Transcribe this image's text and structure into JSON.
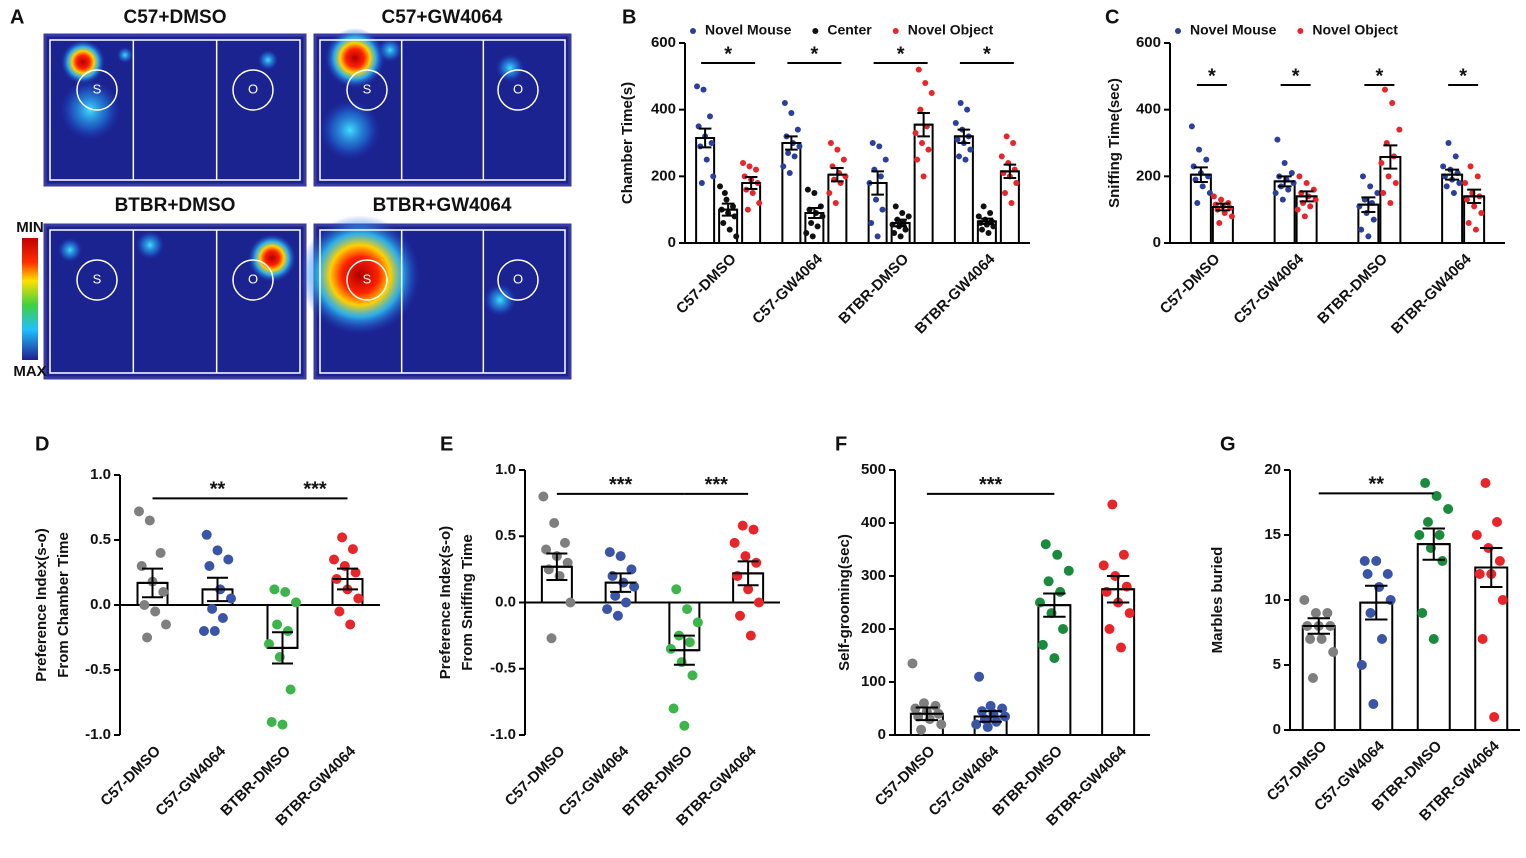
{
  "heatmap_panel": {
    "label": "A",
    "titles": [
      "C57+DMSO",
      "C57+GW4064",
      "BTBR+DMSO",
      "BTBR+GW4064"
    ],
    "colorbar": {
      "min": "MIN",
      "max": "MAX"
    },
    "zone_labels": [
      "S",
      "O"
    ]
  },
  "chart_data": [
    {
      "type": "bar",
      "label": "B",
      "ylabel": "Chamber Time(s)",
      "categories": [
        "C57-DMSO",
        "C57-GW4064",
        "BTBR-DMSO",
        "BTBR-GW4064"
      ],
      "series": [
        {
          "name": "Novel Mouse",
          "color": "#2b3f9c",
          "values": [
            315,
            300,
            180,
            320
          ],
          "errors": [
            28,
            20,
            35,
            20
          ],
          "points": [
            [
              470,
              460,
              380,
              350,
              320,
              300,
              290,
              250,
              200,
              180
            ],
            [
              420,
              390,
              340,
              320,
              300,
              290,
              270,
              260,
              230,
              210
            ],
            [
              300,
              290,
              250,
              220,
              200,
              180,
              130,
              100,
              60,
              20
            ],
            [
              420,
              400,
              360,
              340,
              320,
              310,
              300,
              280,
              260,
              250
            ]
          ]
        },
        {
          "name": "Center",
          "color": "#111111",
          "values": [
            100,
            90,
            60,
            65
          ],
          "errors": [
            18,
            15,
            10,
            8
          ],
          "points": [
            [
              170,
              130,
              110,
              100,
              90,
              80,
              60,
              40,
              20,
              150
            ],
            [
              160,
              150,
              110,
              100,
              90,
              80,
              60,
              50,
              30,
              20
            ],
            [
              110,
              90,
              80,
              70,
              60,
              55,
              50,
              40,
              30,
              20
            ],
            [
              110,
              90,
              80,
              70,
              65,
              60,
              55,
              50,
              40,
              30
            ]
          ]
        },
        {
          "name": "Novel Object",
          "color": "#e8262a",
          "values": [
            180,
            205,
            355,
            215
          ],
          "errors": [
            18,
            20,
            35,
            20
          ],
          "points": [
            [
              240,
              230,
              220,
              200,
              190,
              180,
              160,
              150,
              120,
              100
            ],
            [
              300,
              280,
              250,
              230,
              210,
              200,
              190,
              180,
              150,
              120
            ],
            [
              520,
              480,
              450,
              400,
              350,
              330,
              300,
              280,
              250,
              200
            ],
            [
              320,
              300,
              260,
              240,
              220,
              210,
              200,
              180,
              150,
              120
            ]
          ]
        }
      ],
      "ylim": [
        0,
        600
      ],
      "yticks": [
        0,
        200,
        400,
        600
      ],
      "legend": "top",
      "annotations": [
        {
          "text": "*",
          "category": 0
        },
        {
          "text": "*",
          "category": 1
        },
        {
          "text": "*",
          "category": 2
        },
        {
          "text": "*",
          "category": 3
        }
      ]
    },
    {
      "type": "bar",
      "label": "C",
      "ylabel": "Sniffing Time(sec)",
      "categories": [
        "C57-DMSO",
        "C57-GW4064",
        "BTBR-DMSO",
        "BTBR-GW4064"
      ],
      "series": [
        {
          "name": "Novel Mouse",
          "color": "#2b3f9c",
          "values": [
            205,
            185,
            115,
            205
          ],
          "errors": [
            22,
            15,
            22,
            15
          ],
          "points": [
            [
              350,
              280,
              250,
              230,
              210,
              200,
              190,
              170,
              150,
              120
            ],
            [
              310,
              240,
              210,
              200,
              190,
              180,
              170,
              160,
              150,
              130
            ],
            [
              200,
              170,
              150,
              130,
              120,
              110,
              90,
              70,
              40,
              20
            ],
            [
              300,
              260,
              230,
              220,
              210,
              200,
              190,
              180,
              170,
              150
            ]
          ]
        },
        {
          "name": "Novel Object",
          "color": "#e8262a",
          "values": [
            108,
            140,
            258,
            140
          ],
          "errors": [
            10,
            15,
            35,
            20
          ],
          "points": [
            [
              140,
              130,
              120,
              115,
              110,
              105,
              100,
              90,
              80,
              60
            ],
            [
              200,
              180,
              160,
              150,
              140,
              130,
              120,
              110,
              100,
              80
            ],
            [
              460,
              420,
              340,
              300,
              260,
              240,
              200,
              180,
              150,
              120
            ],
            [
              230,
              200,
              180,
              150,
              140,
              130,
              110,
              90,
              60,
              40
            ]
          ]
        }
      ],
      "ylim": [
        0,
        600
      ],
      "yticks": [
        0,
        200,
        400,
        600
      ],
      "legend": "top",
      "annotations": [
        {
          "text": "*",
          "category": 0
        },
        {
          "text": "*",
          "category": 1
        },
        {
          "text": "*",
          "category": 2
        },
        {
          "text": "*",
          "category": 3
        }
      ]
    },
    {
      "type": "bar",
      "label": "D",
      "ylabel": [
        "Preference Index(s-o)",
        "From Chamber Time"
      ],
      "categories": [
        "C57-DMSO",
        "C57-GW4064",
        "BTBR-DMSO",
        "BTBR-GW4064"
      ],
      "values": [
        0.17,
        0.12,
        -0.33,
        0.2
      ],
      "errors": [
        0.11,
        0.09,
        0.12,
        0.08
      ],
      "colors": [
        "#7f7f7f",
        "#3b55a6",
        "#3cb54a",
        "#e8262a"
      ],
      "points": [
        [
          0.72,
          0.65,
          0.4,
          0.3,
          0.18,
          0.1,
          0,
          -0.05,
          -0.15,
          -0.25
        ],
        [
          0.54,
          0.42,
          0.35,
          0.3,
          0.12,
          0.05,
          -0.03,
          -0.1,
          -0.2,
          -0.2
        ],
        [
          0.12,
          0.1,
          0.02,
          -0.15,
          -0.2,
          -0.3,
          -0.4,
          -0.65,
          -0.9,
          -0.92
        ],
        [
          0.52,
          0.43,
          0.35,
          0.3,
          0.25,
          0.2,
          0.12,
          0.05,
          -0.05,
          -0.15
        ]
      ],
      "ylim": [
        -1,
        1
      ],
      "yticks": [
        {
          "value": -1,
          "label": "-1.0"
        },
        -0.5,
        {
          "value": 0,
          "label": "0.0"
        },
        0.5,
        {
          "value": 1,
          "label": "1.0"
        }
      ],
      "annotations": [
        {
          "text": "**",
          "categories": [
            0,
            2
          ]
        },
        {
          "text": "***",
          "categories": [
            2,
            3
          ]
        }
      ]
    },
    {
      "type": "bar",
      "label": "E",
      "ylabel": [
        "Preference Index(s-o)",
        "From Sniffing Time"
      ],
      "categories": [
        "C57-DMSO",
        "C57-GW4064",
        "BTBR-DMSO",
        "BTBR-GW4064"
      ],
      "values": [
        0.27,
        0.15,
        -0.36,
        0.22
      ],
      "errors": [
        0.1,
        0.07,
        0.11,
        0.09
      ],
      "colors": [
        "#7f7f7f",
        "#3b55a6",
        "#3cb54a",
        "#e8262a"
      ],
      "points": [
        [
          0.8,
          0.6,
          0.45,
          0.4,
          0.35,
          0.3,
          0.25,
          0.2,
          0.0,
          -0.27
        ],
        [
          0.38,
          0.35,
          0.25,
          0.2,
          0.15,
          0.12,
          0.05,
          0,
          -0.05,
          -0.1
        ],
        [
          0.1,
          -0.05,
          -0.15,
          -0.25,
          -0.3,
          -0.35,
          -0.45,
          -0.55,
          -0.8,
          -0.93
        ],
        [
          0.58,
          0.55,
          0.45,
          0.35,
          0.3,
          0.2,
          0.1,
          0,
          -0.1,
          -0.25
        ]
      ],
      "ylim": [
        -1,
        1
      ],
      "yticks": [
        {
          "value": -1,
          "label": "-1.0"
        },
        -0.5,
        {
          "value": 0,
          "label": "0.0"
        },
        0.5,
        {
          "value": 1,
          "label": "1.0"
        }
      ],
      "annotations": [
        {
          "text": "***",
          "categories": [
            0,
            2
          ]
        },
        {
          "text": "***",
          "categories": [
            2,
            3
          ]
        }
      ]
    },
    {
      "type": "bar",
      "label": "F",
      "ylabel": "Self-grooming(sec)",
      "categories": [
        "C57-DMSO",
        "C57-GW4064",
        "BTBR-DMSO",
        "BTBR-GW4064"
      ],
      "values": [
        40,
        35,
        245,
        275
      ],
      "errors": [
        12,
        10,
        22,
        25
      ],
      "colors": [
        "#7f7f7f",
        "#3b55a6",
        "#1a8a3c",
        "#e8262a"
      ],
      "points": [
        [
          135,
          60,
          55,
          50,
          45,
          40,
          35,
          30,
          20,
          10
        ],
        [
          110,
          55,
          50,
          45,
          40,
          35,
          30,
          25,
          20,
          15
        ],
        [
          360,
          340,
          310,
          290,
          270,
          250,
          230,
          200,
          170,
          145
        ],
        [
          435,
          340,
          320,
          300,
          280,
          270,
          250,
          230,
          200,
          165
        ]
      ],
      "ylim": [
        0,
        500
      ],
      "yticks": [
        0,
        100,
        200,
        300,
        400,
        500
      ],
      "annotations": [
        {
          "text": "***",
          "categories": [
            0,
            2
          ]
        }
      ]
    },
    {
      "type": "bar",
      "label": "G",
      "ylabel": "Marbles buried",
      "categories": [
        "C57-DMSO",
        "C57-GW4064",
        "BTBR-DMSO",
        "BTBR-GW4064"
      ],
      "values": [
        8,
        9.8,
        14.3,
        12.5
      ],
      "errors": [
        0.6,
        1.3,
        1.2,
        1.5
      ],
      "colors": [
        "#7f7f7f",
        "#3b55a6",
        "#1a8a3c",
        "#e8262a"
      ],
      "points": [
        [
          10,
          9,
          9,
          8,
          8,
          8,
          7,
          7,
          6,
          4
        ],
        [
          13,
          13,
          12,
          12,
          11,
          10,
          9,
          7,
          5,
          2
        ],
        [
          19,
          18,
          17,
          16,
          15,
          15,
          14,
          13,
          9,
          7
        ],
        [
          19,
          16,
          15,
          14,
          13,
          12,
          12,
          10,
          7,
          1
        ]
      ],
      "ylim": [
        0,
        20
      ],
      "yticks": [
        0,
        5,
        10,
        15,
        20
      ],
      "annotations": [
        {
          "text": "**",
          "categories": [
            0,
            2
          ]
        }
      ]
    }
  ]
}
